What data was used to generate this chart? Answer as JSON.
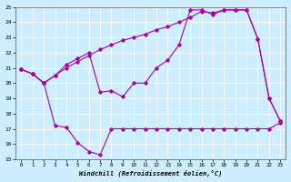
{
  "xlabel": "Windchill (Refroidissement éolien,°C)",
  "bg_color": "#cceeff",
  "line_color": "#aa00aa",
  "ylim": [
    15,
    25
  ],
  "xlim": [
    0,
    23
  ],
  "yticks": [
    15,
    16,
    17,
    18,
    19,
    20,
    21,
    22,
    23,
    24,
    25
  ],
  "xticks": [
    0,
    1,
    2,
    3,
    4,
    5,
    6,
    7,
    8,
    9,
    10,
    11,
    12,
    13,
    14,
    15,
    16,
    17,
    18,
    19,
    20,
    21,
    22,
    23
  ],
  "series": [
    {
      "x": [
        0,
        1,
        2,
        3,
        4,
        5,
        6,
        7,
        8,
        9,
        10,
        11,
        12,
        13,
        14,
        15,
        16,
        17,
        18,
        19,
        20,
        21,
        22,
        23
      ],
      "y": [
        20.9,
        20.6,
        20.0,
        17.2,
        17.1,
        16.1,
        15.5,
        15.3,
        17.0,
        17.0,
        17.0,
        17.0,
        17.0,
        17.0,
        17.0,
        17.0,
        17.0,
        17.0,
        17.0,
        17.0,
        17.0,
        17.0,
        17.0,
        17.4
      ]
    },
    {
      "x": [
        0,
        1,
        2,
        3,
        4,
        5,
        6,
        7,
        8,
        9,
        10,
        11,
        12,
        13,
        14,
        15,
        16,
        17,
        18,
        19,
        20,
        21,
        22,
        23
      ],
      "y": [
        20.9,
        20.6,
        20.0,
        20.5,
        21.2,
        21.6,
        22.0,
        19.4,
        19.5,
        19.1,
        20.0,
        20.0,
        21.0,
        21.5,
        22.5,
        24.8,
        24.8,
        24.5,
        24.8,
        24.8,
        24.8,
        22.9,
        19.0,
        17.5
      ]
    },
    {
      "x": [
        0,
        1,
        2,
        3,
        4,
        5,
        6,
        7,
        8,
        9,
        10,
        11,
        12,
        13,
        14,
        15,
        16,
        17,
        18,
        19,
        20,
        21,
        22,
        23
      ],
      "y": [
        20.9,
        20.6,
        20.0,
        20.5,
        21.0,
        21.4,
        21.8,
        22.2,
        22.5,
        22.8,
        23.0,
        23.2,
        23.5,
        23.7,
        24.0,
        24.3,
        24.7,
        24.6,
        24.8,
        24.8,
        24.8,
        22.9,
        19.0,
        17.5
      ]
    }
  ]
}
